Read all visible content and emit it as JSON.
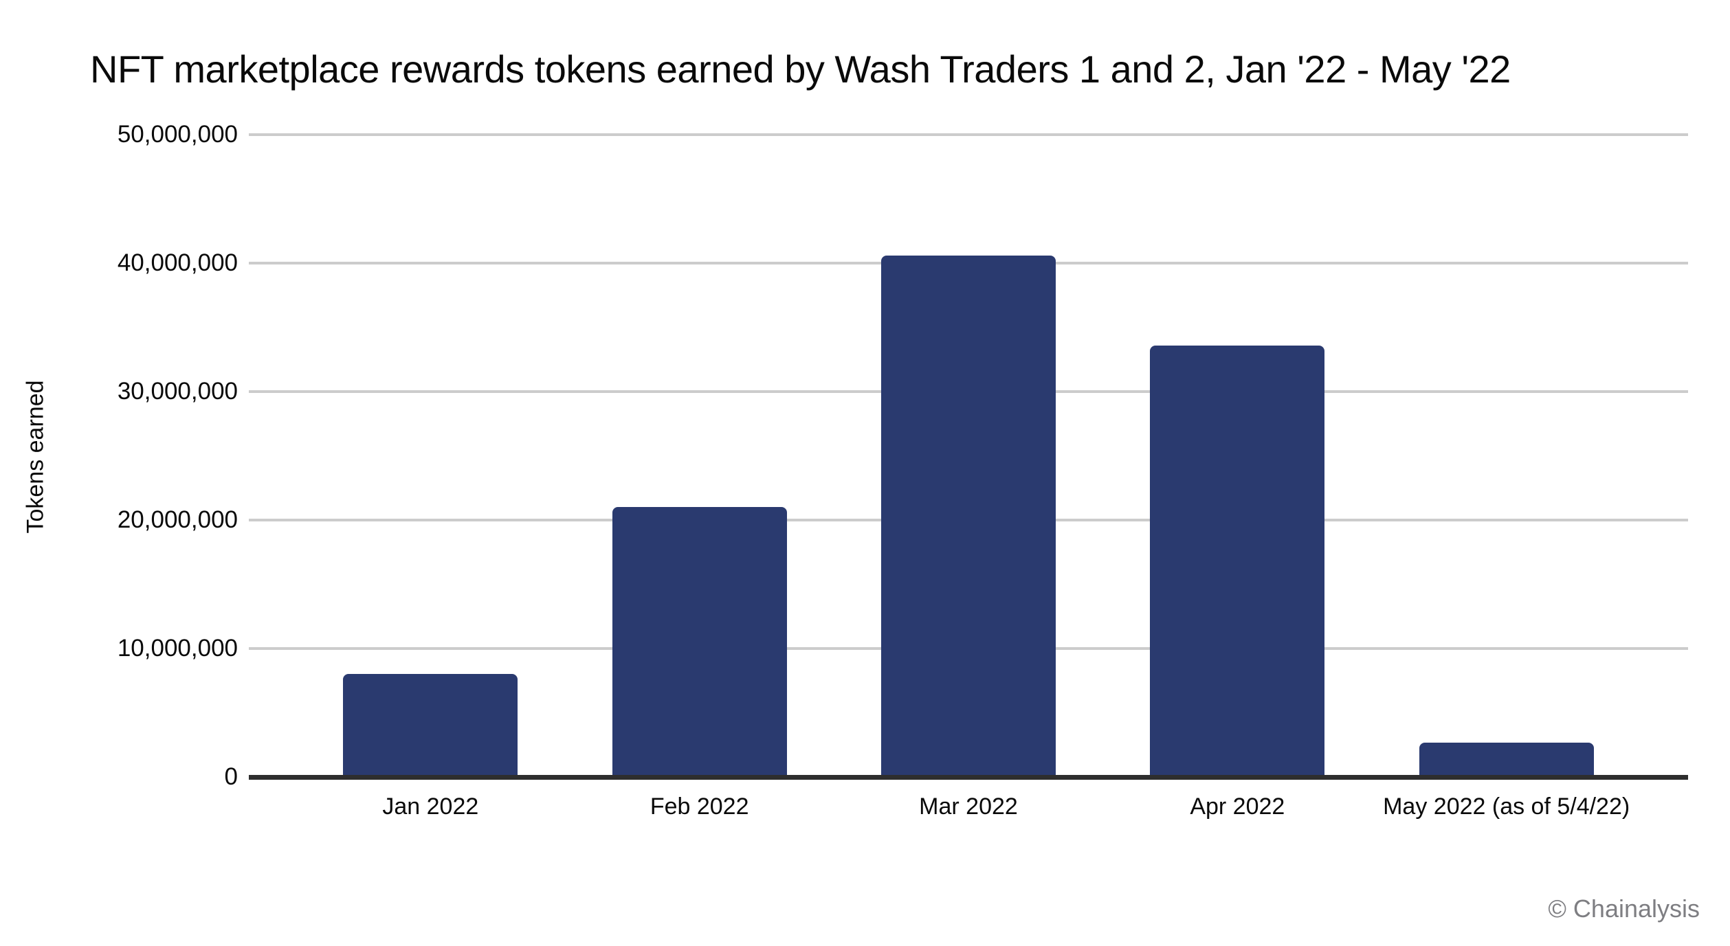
{
  "chart_data": {
    "type": "bar",
    "title": "NFT marketplace rewards tokens earned by Wash Traders 1 and 2, Jan '22 - May '22",
    "xlabel": "",
    "ylabel": "Tokens earned",
    "categories": [
      "Jan 2022",
      "Feb 2022",
      "Mar 2022",
      "Apr 2022",
      "May 2022 (as of 5/4/22)"
    ],
    "values": [
      8000000,
      21000000,
      40600000,
      33600000,
      2700000
    ],
    "ylim": [
      0,
      50000000
    ],
    "ytick_interval": 10000000,
    "ytick_labels": [
      "0",
      "10,000,000",
      "20,000,000",
      "30,000,000",
      "40,000,000",
      "50,000,000"
    ],
    "grid": true,
    "legend_position": "none",
    "bar_color": "#2A3A6F",
    "gridline_color": "#cccccc",
    "axis_line_color": "#2e2e2e",
    "text_color": "#0a0a0a"
  },
  "watermark": {
    "label": "© Chainalysis",
    "color": "#7e7e82"
  }
}
